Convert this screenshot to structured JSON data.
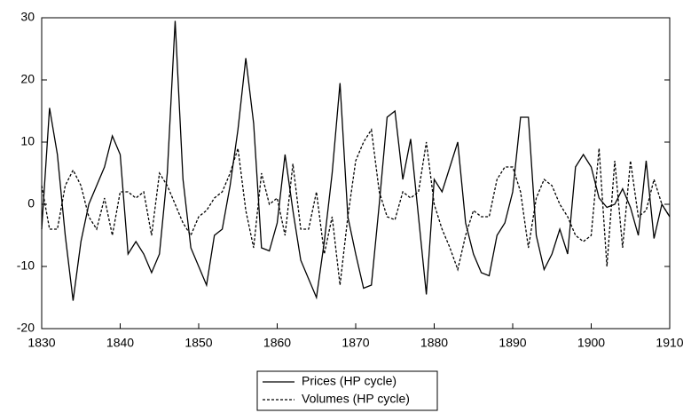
{
  "chart_data": {
    "type": "line",
    "x": [
      1830,
      1831,
      1832,
      1833,
      1834,
      1835,
      1836,
      1837,
      1838,
      1839,
      1840,
      1841,
      1842,
      1843,
      1844,
      1845,
      1846,
      1847,
      1848,
      1849,
      1850,
      1851,
      1852,
      1853,
      1854,
      1855,
      1856,
      1857,
      1858,
      1859,
      1860,
      1861,
      1862,
      1863,
      1864,
      1865,
      1866,
      1867,
      1868,
      1869,
      1870,
      1871,
      1872,
      1873,
      1874,
      1875,
      1876,
      1877,
      1878,
      1879,
      1880,
      1881,
      1882,
      1883,
      1884,
      1885,
      1886,
      1887,
      1888,
      1889,
      1890,
      1891,
      1892,
      1893,
      1894,
      1895,
      1896,
      1897,
      1898,
      1899,
      1900,
      1901,
      1902,
      1903,
      1904,
      1905,
      1906,
      1907,
      1908,
      1909,
      1910
    ],
    "series": [
      {
        "name": "Prices (HP cycle)",
        "color": "#000000",
        "dash": "solid",
        "values": [
          -4,
          15.5,
          8,
          -5,
          -15.5,
          -6,
          0,
          3,
          6,
          11,
          8,
          -8,
          -6,
          -8,
          -11,
          -8,
          5,
          29.5,
          4,
          -7,
          -10,
          -13,
          -5,
          -4,
          3,
          12,
          23.5,
          13,
          -7,
          -7.5,
          -3,
          8,
          -1,
          -9,
          -12,
          -15,
          -6,
          5,
          19.5,
          -2,
          -8,
          -13.5,
          -13,
          0,
          14,
          15,
          4,
          10.5,
          -2,
          -14.5,
          4,
          2,
          6,
          10,
          -3,
          -8,
          -11,
          -11.5,
          -5,
          -3,
          2,
          14,
          14,
          -5,
          -10.5,
          -8,
          -4,
          -8,
          6,
          8,
          6,
          1,
          -0.5,
          0,
          2.5,
          -0.5,
          -5,
          7,
          -5.5,
          0,
          -2
        ]
      },
      {
        "name": "Volumes (HP cycle)",
        "color": "#000000",
        "dash": "dashed",
        "values": [
          3,
          -4,
          -4,
          3,
          5.5,
          3,
          -2,
          -4,
          1,
          -5,
          2,
          2,
          1,
          2,
          -5,
          5,
          3,
          0,
          -3,
          -5,
          -2,
          -1,
          1,
          2,
          5,
          9,
          -1,
          -7,
          5,
          0,
          1,
          -5,
          6.5,
          -4,
          -4,
          2,
          -8,
          -2,
          -13,
          -2,
          7,
          10,
          12,
          2,
          -2,
          -2.5,
          2,
          1,
          2,
          10,
          0,
          -4,
          -7,
          -10.5,
          -5,
          -1,
          -2,
          -2,
          4,
          6,
          6,
          2,
          -7,
          1,
          4,
          3,
          0,
          -2,
          -5,
          -6,
          -5,
          9,
          -10,
          7,
          -7,
          7,
          -2,
          -1,
          4,
          0,
          -2
        ]
      }
    ],
    "xlim": [
      1830,
      1910
    ],
    "xticks": [
      1830,
      1840,
      1850,
      1860,
      1870,
      1880,
      1890,
      1900,
      1910
    ],
    "ylim": [
      -20,
      30
    ],
    "yticks": [
      -20,
      -10,
      0,
      10,
      20,
      30
    ],
    "legend": "bottom"
  }
}
